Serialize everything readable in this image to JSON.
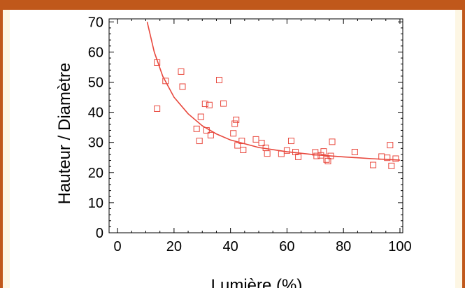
{
  "colors": {
    "frame": "#c0581b",
    "background": "#fdf6e4",
    "panel": "#ffffff",
    "series": "#e8473c"
  },
  "chart_data": {
    "type": "scatter",
    "title": "",
    "xlabel": "Lumière (%)",
    "ylabel": "Hauteur / Diamètre",
    "xlim": [
      -3,
      101
    ],
    "ylim": [
      0,
      71
    ],
    "xticks": [
      0,
      20,
      40,
      60,
      80,
      100
    ],
    "yticks": [
      0,
      10,
      20,
      30,
      40,
      50,
      60,
      70
    ],
    "grid": false,
    "legend": "none",
    "series": [
      {
        "marker": "open-square",
        "points": [
          [
            14,
            56.5
          ],
          [
            14,
            41.2
          ],
          [
            17,
            50.4
          ],
          [
            22.5,
            53.5
          ],
          [
            23,
            48.5
          ],
          [
            28,
            34.5
          ],
          [
            29,
            30.5
          ],
          [
            29.5,
            38.5
          ],
          [
            31,
            42.8
          ],
          [
            31.5,
            34
          ],
          [
            32.5,
            42.4
          ],
          [
            33,
            32.4
          ],
          [
            36,
            50.7
          ],
          [
            37.5,
            42.9
          ],
          [
            41,
            33
          ],
          [
            41.5,
            36.2
          ],
          [
            42,
            37.5
          ],
          [
            42.5,
            29
          ],
          [
            44,
            30.5
          ],
          [
            44.5,
            27.5
          ],
          [
            49,
            31
          ],
          [
            51,
            29.8
          ],
          [
            52.5,
            28.2
          ],
          [
            53,
            26.3
          ],
          [
            58,
            26.2
          ],
          [
            60,
            27.3
          ],
          [
            61.5,
            30.5
          ],
          [
            63,
            26.8
          ],
          [
            64,
            25.2
          ],
          [
            70,
            26.7
          ],
          [
            70.5,
            25.5
          ],
          [
            72,
            25.7
          ],
          [
            73,
            27
          ],
          [
            74,
            24.3
          ],
          [
            74.5,
            23.8
          ],
          [
            75.5,
            25.5
          ],
          [
            76,
            30.2
          ],
          [
            84,
            26.8
          ],
          [
            90.5,
            22.5
          ],
          [
            93.5,
            25.3
          ],
          [
            95.5,
            24.9
          ],
          [
            96.5,
            29.1
          ],
          [
            97,
            22.2
          ],
          [
            98.5,
            24.6
          ]
        ]
      },
      {
        "type": "line",
        "x": [
          10.5,
          13,
          16,
          20,
          25,
          30,
          35,
          40,
          50,
          60,
          70,
          80,
          90,
          100
        ],
        "y": [
          70,
          60,
          52,
          45,
          39.5,
          35.5,
          32.8,
          30.8,
          28.3,
          26.9,
          25.9,
          25.2,
          24.6,
          24.1
        ]
      }
    ]
  }
}
